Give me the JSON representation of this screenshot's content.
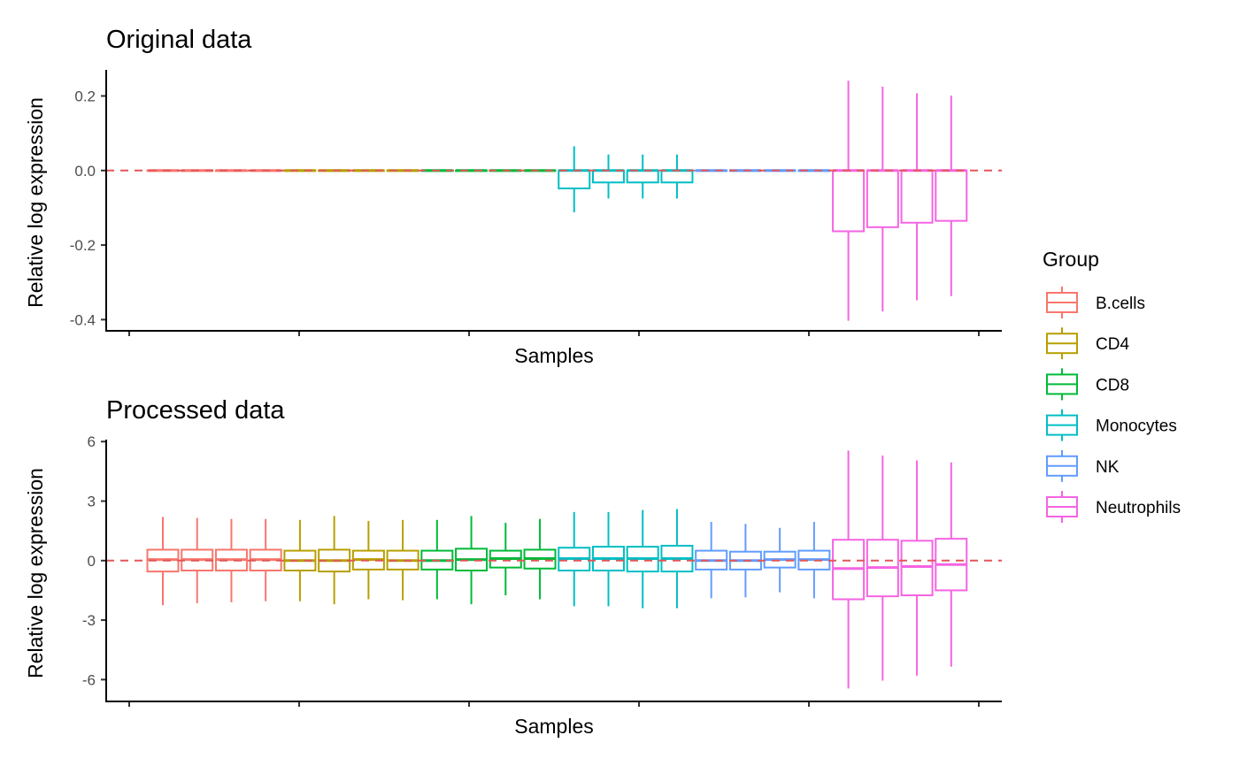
{
  "legend": {
    "title": "Group",
    "entries": [
      {
        "label": "B.cells",
        "color": "#F8766D"
      },
      {
        "label": "CD4",
        "color": "#B79F00"
      },
      {
        "label": "CD8",
        "color": "#00BA38"
      },
      {
        "label": "Monocytes",
        "color": "#00BFC4"
      },
      {
        "label": "NK",
        "color": "#619CFF"
      },
      {
        "label": "Neutrophils",
        "color": "#F564E3"
      }
    ]
  },
  "reference_line_color": "#E15759",
  "chart_data": [
    {
      "type": "boxplot",
      "title": "Original data",
      "xlabel": "Samples",
      "ylabel": "Relative log expression",
      "ylim": [
        -0.43,
        0.27
      ],
      "yticks": [
        0.2,
        0.0,
        -0.2,
        -0.4
      ],
      "ytick_labels": [
        "0.2",
        "0.0",
        "-0.2",
        "-0.4"
      ],
      "reference_line": 0,
      "boxes": [
        {
          "group": "B.cells",
          "lower_whisker": 0,
          "q1": 0,
          "median": 0,
          "q3": 0,
          "upper_whisker": 0
        },
        {
          "group": "B.cells",
          "lower_whisker": 0,
          "q1": 0,
          "median": 0,
          "q3": 0,
          "upper_whisker": 0
        },
        {
          "group": "B.cells",
          "lower_whisker": 0,
          "q1": 0,
          "median": 0,
          "q3": 0,
          "upper_whisker": 0
        },
        {
          "group": "B.cells",
          "lower_whisker": 0,
          "q1": 0,
          "median": 0,
          "q3": 0,
          "upper_whisker": 0
        },
        {
          "group": "CD4",
          "lower_whisker": 0,
          "q1": 0,
          "median": 0,
          "q3": 0,
          "upper_whisker": 0
        },
        {
          "group": "CD4",
          "lower_whisker": 0,
          "q1": 0,
          "median": 0,
          "q3": 0,
          "upper_whisker": 0
        },
        {
          "group": "CD4",
          "lower_whisker": 0,
          "q1": 0,
          "median": 0,
          "q3": 0,
          "upper_whisker": 0
        },
        {
          "group": "CD4",
          "lower_whisker": 0,
          "q1": 0,
          "median": 0,
          "q3": 0,
          "upper_whisker": 0
        },
        {
          "group": "CD8",
          "lower_whisker": 0,
          "q1": 0,
          "median": 0,
          "q3": 0,
          "upper_whisker": 0
        },
        {
          "group": "CD8",
          "lower_whisker": 0,
          "q1": 0,
          "median": 0,
          "q3": 0,
          "upper_whisker": 0
        },
        {
          "group": "CD8",
          "lower_whisker": 0,
          "q1": 0,
          "median": 0,
          "q3": 0,
          "upper_whisker": 0
        },
        {
          "group": "CD8",
          "lower_whisker": 0,
          "q1": 0,
          "median": 0,
          "q3": 0,
          "upper_whisker": 0
        },
        {
          "group": "Monocytes",
          "lower_whisker": -0.112,
          "q1": -0.048,
          "median": 0,
          "q3": 0,
          "upper_whisker": 0.065
        },
        {
          "group": "Monocytes",
          "lower_whisker": -0.075,
          "q1": -0.032,
          "median": 0,
          "q3": 0,
          "upper_whisker": 0.043
        },
        {
          "group": "Monocytes",
          "lower_whisker": -0.075,
          "q1": -0.032,
          "median": 0,
          "q3": 0,
          "upper_whisker": 0.043
        },
        {
          "group": "Monocytes",
          "lower_whisker": -0.075,
          "q1": -0.032,
          "median": 0,
          "q3": 0,
          "upper_whisker": 0.043
        },
        {
          "group": "NK",
          "lower_whisker": 0,
          "q1": 0,
          "median": 0,
          "q3": 0,
          "upper_whisker": 0
        },
        {
          "group": "NK",
          "lower_whisker": 0,
          "q1": 0,
          "median": 0,
          "q3": 0,
          "upper_whisker": 0
        },
        {
          "group": "NK",
          "lower_whisker": 0,
          "q1": 0,
          "median": 0,
          "q3": 0,
          "upper_whisker": 0
        },
        {
          "group": "NK",
          "lower_whisker": 0,
          "q1": 0,
          "median": 0,
          "q3": 0,
          "upper_whisker": 0
        },
        {
          "group": "Neutrophils",
          "lower_whisker": -0.403,
          "q1": -0.163,
          "median": 0,
          "q3": 0,
          "upper_whisker": 0.241
        },
        {
          "group": "Neutrophils",
          "lower_whisker": -0.378,
          "q1": -0.152,
          "median": 0,
          "q3": 0,
          "upper_whisker": 0.225
        },
        {
          "group": "Neutrophils",
          "lower_whisker": -0.348,
          "q1": -0.14,
          "median": 0,
          "q3": 0,
          "upper_whisker": 0.207
        },
        {
          "group": "Neutrophils",
          "lower_whisker": -0.337,
          "q1": -0.135,
          "median": 0,
          "q3": 0,
          "upper_whisker": 0.201
        }
      ]
    },
    {
      "type": "boxplot",
      "title": "Processed data",
      "xlabel": "Samples",
      "ylabel": "Relative log expression",
      "ylim": [
        -7.1,
        6.1
      ],
      "yticks": [
        6,
        3,
        0,
        -3,
        -6
      ],
      "ytick_labels": [
        "6",
        "3",
        "0",
        "-3",
        "-6"
      ],
      "reference_line": 0,
      "boxes": [
        {
          "group": "B.cells",
          "lower_whisker": -2.25,
          "q1": -0.55,
          "median": 0.05,
          "q3": 0.55,
          "upper_whisker": 2.2
        },
        {
          "group": "B.cells",
          "lower_whisker": -2.15,
          "q1": -0.5,
          "median": 0.05,
          "q3": 0.55,
          "upper_whisker": 2.15
        },
        {
          "group": "B.cells",
          "lower_whisker": -2.1,
          "q1": -0.5,
          "median": 0.05,
          "q3": 0.55,
          "upper_whisker": 2.1
        },
        {
          "group": "B.cells",
          "lower_whisker": -2.05,
          "q1": -0.5,
          "median": 0.05,
          "q3": 0.55,
          "upper_whisker": 2.1
        },
        {
          "group": "CD4",
          "lower_whisker": -2.05,
          "q1": -0.5,
          "median": 0.0,
          "q3": 0.5,
          "upper_whisker": 2.05
        },
        {
          "group": "CD4",
          "lower_whisker": -2.2,
          "q1": -0.55,
          "median": 0.0,
          "q3": 0.55,
          "upper_whisker": 2.25
        },
        {
          "group": "CD4",
          "lower_whisker": -1.95,
          "q1": -0.45,
          "median": 0.05,
          "q3": 0.5,
          "upper_whisker": 2.0
        },
        {
          "group": "CD4",
          "lower_whisker": -2.0,
          "q1": -0.45,
          "median": 0.0,
          "q3": 0.5,
          "upper_whisker": 2.05
        },
        {
          "group": "CD8",
          "lower_whisker": -1.95,
          "q1": -0.45,
          "median": 0.0,
          "q3": 0.5,
          "upper_whisker": 2.05
        },
        {
          "group": "CD8",
          "lower_whisker": -2.2,
          "q1": -0.5,
          "median": 0.05,
          "q3": 0.6,
          "upper_whisker": 2.25
        },
        {
          "group": "CD8",
          "lower_whisker": -1.75,
          "q1": -0.35,
          "median": 0.1,
          "q3": 0.5,
          "upper_whisker": 1.9
        },
        {
          "group": "CD8",
          "lower_whisker": -1.95,
          "q1": -0.4,
          "median": 0.1,
          "q3": 0.55,
          "upper_whisker": 2.1
        },
        {
          "group": "Monocytes",
          "lower_whisker": -2.3,
          "q1": -0.5,
          "median": 0.1,
          "q3": 0.65,
          "upper_whisker": 2.45
        },
        {
          "group": "Monocytes",
          "lower_whisker": -2.3,
          "q1": -0.5,
          "median": 0.1,
          "q3": 0.7,
          "upper_whisker": 2.45
        },
        {
          "group": "Monocytes",
          "lower_whisker": -2.4,
          "q1": -0.55,
          "median": 0.1,
          "q3": 0.7,
          "upper_whisker": 2.55
        },
        {
          "group": "Monocytes",
          "lower_whisker": -2.4,
          "q1": -0.55,
          "median": 0.1,
          "q3": 0.75,
          "upper_whisker": 2.6
        },
        {
          "group": "NK",
          "lower_whisker": -1.9,
          "q1": -0.45,
          "median": 0.0,
          "q3": 0.5,
          "upper_whisker": 1.95
        },
        {
          "group": "NK",
          "lower_whisker": -1.85,
          "q1": -0.45,
          "median": 0.0,
          "q3": 0.45,
          "upper_whisker": 1.85
        },
        {
          "group": "NK",
          "lower_whisker": -1.6,
          "q1": -0.35,
          "median": 0.05,
          "q3": 0.45,
          "upper_whisker": 1.65
        },
        {
          "group": "NK",
          "lower_whisker": -1.9,
          "q1": -0.45,
          "median": 0.05,
          "q3": 0.5,
          "upper_whisker": 1.95
        },
        {
          "group": "Neutrophils",
          "lower_whisker": -6.45,
          "q1": -1.95,
          "median": -0.4,
          "q3": 1.05,
          "upper_whisker": 5.55
        },
        {
          "group": "Neutrophils",
          "lower_whisker": -6.05,
          "q1": -1.8,
          "median": -0.35,
          "q3": 1.05,
          "upper_whisker": 5.3
        },
        {
          "group": "Neutrophils",
          "lower_whisker": -5.8,
          "q1": -1.75,
          "median": -0.3,
          "q3": 1.0,
          "upper_whisker": 5.05
        },
        {
          "group": "Neutrophils",
          "lower_whisker": -5.35,
          "q1": -1.5,
          "median": -0.2,
          "q3": 1.1,
          "upper_whisker": 4.95
        }
      ]
    }
  ]
}
